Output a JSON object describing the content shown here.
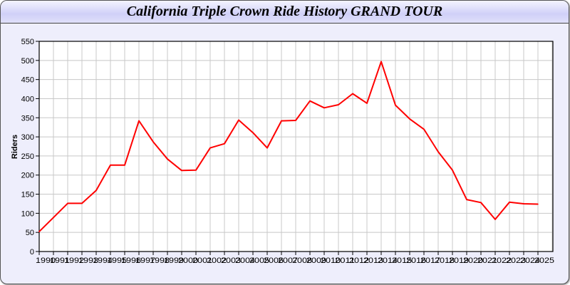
{
  "chart_data": {
    "type": "line",
    "title": "California Triple Crown Ride History GRAND TOUR",
    "xlabel": "",
    "ylabel": "Riders",
    "ylim": [
      0,
      550
    ],
    "yticks": [
      0,
      50,
      100,
      150,
      200,
      250,
      300,
      350,
      400,
      450,
      500,
      550
    ],
    "grid": true,
    "x": [
      "1990",
      "1991",
      "1992",
      "1993",
      "1994",
      "1995",
      "1996",
      "1997",
      "1998",
      "1999",
      "2000",
      "2001",
      "2002",
      "2003",
      "2004",
      "2005",
      "2006",
      "2007",
      "2008",
      "2009",
      "2010",
      "2011",
      "2012",
      "2013",
      "2014",
      "2015",
      "2016",
      "2017",
      "2018",
      "2019",
      "2020",
      "2021",
      "2022",
      "2023",
      "2024",
      "2025"
    ],
    "series": [
      {
        "color": "#ff0000",
        "values": [
          52,
          89,
          126,
          126,
          160,
          226,
          226,
          342,
          287,
          242,
          212,
          213,
          271,
          282,
          344,
          311,
          271,
          342,
          343,
          394,
          376,
          384,
          413,
          388,
          497,
          383,
          347,
          320,
          261,
          213,
          136,
          128,
          84,
          129,
          125,
          124
        ]
      }
    ]
  }
}
